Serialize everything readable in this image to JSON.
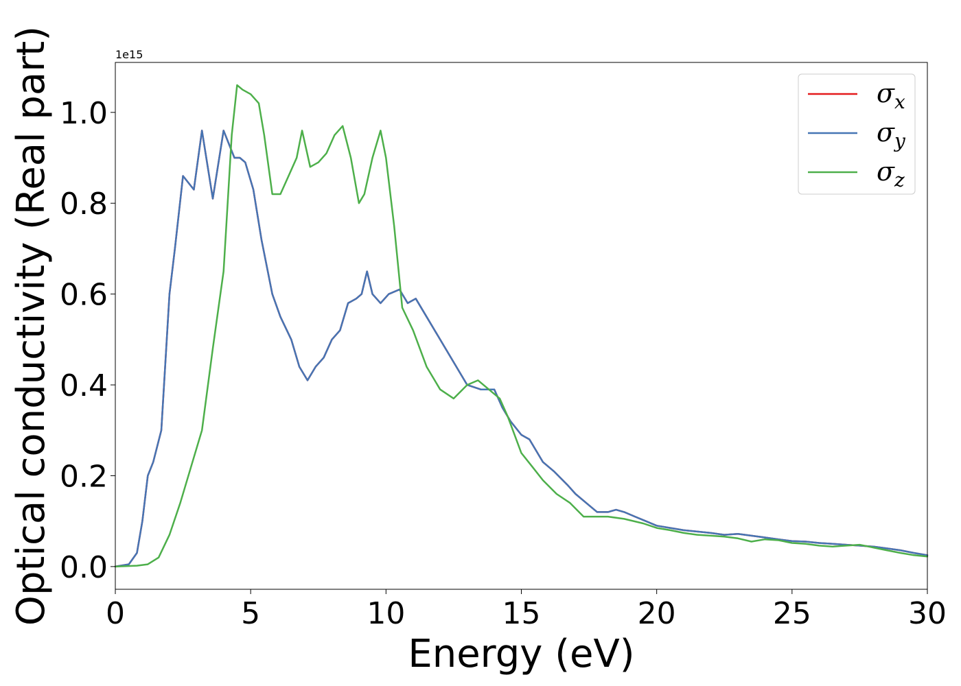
{
  "chart_data": {
    "type": "line",
    "xlabel": "Energy (eV)",
    "ylabel": "Optical conductivity (Real part)",
    "offset_text": "1e15",
    "xlim": [
      0,
      30
    ],
    "ylim": [
      -0.05,
      1.11
    ],
    "xticks": [
      0,
      5,
      10,
      15,
      20,
      25,
      30
    ],
    "xtick_labels": [
      "0",
      "5",
      "10",
      "15",
      "20",
      "25",
      "30"
    ],
    "yticks": [
      0.0,
      0.2,
      0.4,
      0.6,
      0.8,
      1.0
    ],
    "ytick_labels": [
      "0.0",
      "0.2",
      "0.4",
      "0.6",
      "0.8",
      "1.0"
    ],
    "legend_position": "top-right",
    "series": [
      {
        "name": "σx",
        "symbol": "σ",
        "subscript": "x",
        "color": "#e41a1c",
        "x": [
          0,
          0.5,
          0.8,
          1.0,
          1.2,
          1.4,
          1.7,
          2.0,
          2.2,
          2.5,
          2.9,
          3.2,
          3.6,
          4.0,
          4.4,
          4.6,
          4.8,
          5.1,
          5.4,
          5.8,
          6.1,
          6.5,
          6.8,
          7.1,
          7.4,
          7.7,
          8.0,
          8.3,
          8.6,
          8.9,
          9.1,
          9.3,
          9.5,
          9.8,
          10.1,
          10.5,
          10.8,
          11.1,
          11.5,
          12.0,
          12.5,
          13.0,
          13.5,
          14.0,
          14.3,
          14.6,
          15.0,
          15.3,
          15.8,
          16.2,
          16.7,
          17.0,
          17.4,
          17.8,
          18.2,
          18.5,
          18.8,
          19.2,
          19.6,
          20.0,
          20.5,
          21.0,
          21.5,
          22.0,
          22.5,
          23.0,
          23.5,
          24.0,
          24.5,
          25.0,
          25.5,
          26.0,
          26.5,
          27.0,
          27.5,
          28.0,
          28.5,
          29.0,
          29.5,
          30.0
        ],
        "y": [
          0.0,
          0.005,
          0.03,
          0.1,
          0.2,
          0.23,
          0.3,
          0.6,
          0.7,
          0.86,
          0.83,
          0.96,
          0.81,
          0.96,
          0.9,
          0.9,
          0.89,
          0.83,
          0.72,
          0.6,
          0.55,
          0.5,
          0.44,
          0.41,
          0.44,
          0.46,
          0.5,
          0.52,
          0.58,
          0.59,
          0.6,
          0.65,
          0.6,
          0.58,
          0.6,
          0.61,
          0.58,
          0.59,
          0.55,
          0.5,
          0.45,
          0.4,
          0.39,
          0.39,
          0.35,
          0.32,
          0.29,
          0.28,
          0.23,
          0.21,
          0.18,
          0.16,
          0.14,
          0.12,
          0.12,
          0.125,
          0.12,
          0.11,
          0.1,
          0.09,
          0.085,
          0.08,
          0.077,
          0.074,
          0.07,
          0.072,
          0.068,
          0.064,
          0.06,
          0.056,
          0.055,
          0.052,
          0.05,
          0.048,
          0.046,
          0.044,
          0.04,
          0.036,
          0.03,
          0.025
        ]
      },
      {
        "name": "σy",
        "symbol": "σ",
        "subscript": "y",
        "color": "#4575b4",
        "x": [
          0,
          0.5,
          0.8,
          1.0,
          1.2,
          1.4,
          1.7,
          2.0,
          2.2,
          2.5,
          2.9,
          3.2,
          3.6,
          4.0,
          4.4,
          4.6,
          4.8,
          5.1,
          5.4,
          5.8,
          6.1,
          6.5,
          6.8,
          7.1,
          7.4,
          7.7,
          8.0,
          8.3,
          8.6,
          8.9,
          9.1,
          9.3,
          9.5,
          9.8,
          10.1,
          10.5,
          10.8,
          11.1,
          11.5,
          12.0,
          12.5,
          13.0,
          13.5,
          14.0,
          14.3,
          14.6,
          15.0,
          15.3,
          15.8,
          16.2,
          16.7,
          17.0,
          17.4,
          17.8,
          18.2,
          18.5,
          18.8,
          19.2,
          19.6,
          20.0,
          20.5,
          21.0,
          21.5,
          22.0,
          22.5,
          23.0,
          23.5,
          24.0,
          24.5,
          25.0,
          25.5,
          26.0,
          26.5,
          27.0,
          27.5,
          28.0,
          28.5,
          29.0,
          29.5,
          30.0
        ],
        "y": [
          0.0,
          0.005,
          0.03,
          0.1,
          0.2,
          0.23,
          0.3,
          0.6,
          0.7,
          0.86,
          0.83,
          0.96,
          0.81,
          0.96,
          0.9,
          0.9,
          0.89,
          0.83,
          0.72,
          0.6,
          0.55,
          0.5,
          0.44,
          0.41,
          0.44,
          0.46,
          0.5,
          0.52,
          0.58,
          0.59,
          0.6,
          0.65,
          0.6,
          0.58,
          0.6,
          0.61,
          0.58,
          0.59,
          0.55,
          0.5,
          0.45,
          0.4,
          0.39,
          0.39,
          0.35,
          0.32,
          0.29,
          0.28,
          0.23,
          0.21,
          0.18,
          0.16,
          0.14,
          0.12,
          0.12,
          0.125,
          0.12,
          0.11,
          0.1,
          0.09,
          0.085,
          0.08,
          0.077,
          0.074,
          0.07,
          0.072,
          0.068,
          0.064,
          0.06,
          0.056,
          0.055,
          0.052,
          0.05,
          0.048,
          0.046,
          0.044,
          0.04,
          0.036,
          0.03,
          0.025
        ]
      },
      {
        "name": "σz",
        "symbol": "σ",
        "subscript": "z",
        "color": "#4daf4a",
        "x": [
          0,
          0.8,
          1.2,
          1.6,
          2.0,
          2.4,
          2.8,
          3.2,
          3.6,
          4.0,
          4.3,
          4.5,
          4.7,
          5.0,
          5.3,
          5.5,
          5.8,
          6.1,
          6.4,
          6.7,
          6.9,
          7.2,
          7.5,
          7.8,
          8.1,
          8.4,
          8.7,
          9.0,
          9.2,
          9.5,
          9.8,
          10.0,
          10.3,
          10.6,
          11.0,
          11.5,
          12.0,
          12.5,
          13.0,
          13.4,
          13.8,
          14.2,
          14.5,
          15.0,
          15.4,
          15.8,
          16.3,
          16.8,
          17.3,
          17.7,
          18.2,
          18.8,
          19.5,
          20.0,
          20.5,
          21.0,
          21.5,
          22.0,
          22.5,
          23.0,
          23.5,
          24.0,
          24.5,
          25.0,
          25.5,
          26.0,
          26.5,
          27.0,
          27.5,
          28.0,
          28.5,
          29.0,
          29.5,
          30.0
        ],
        "y": [
          0.0,
          0.002,
          0.005,
          0.02,
          0.07,
          0.14,
          0.22,
          0.3,
          0.48,
          0.65,
          0.95,
          1.06,
          1.05,
          1.04,
          1.02,
          0.95,
          0.82,
          0.82,
          0.86,
          0.9,
          0.96,
          0.88,
          0.89,
          0.91,
          0.95,
          0.97,
          0.9,
          0.8,
          0.82,
          0.9,
          0.96,
          0.9,
          0.75,
          0.57,
          0.52,
          0.44,
          0.39,
          0.37,
          0.4,
          0.41,
          0.39,
          0.37,
          0.33,
          0.25,
          0.22,
          0.19,
          0.16,
          0.14,
          0.11,
          0.11,
          0.11,
          0.105,
          0.095,
          0.085,
          0.08,
          0.074,
          0.07,
          0.068,
          0.066,
          0.062,
          0.055,
          0.06,
          0.058,
          0.052,
          0.05,
          0.046,
          0.044,
          0.046,
          0.048,
          0.042,
          0.036,
          0.03,
          0.025,
          0.022
        ]
      }
    ]
  }
}
